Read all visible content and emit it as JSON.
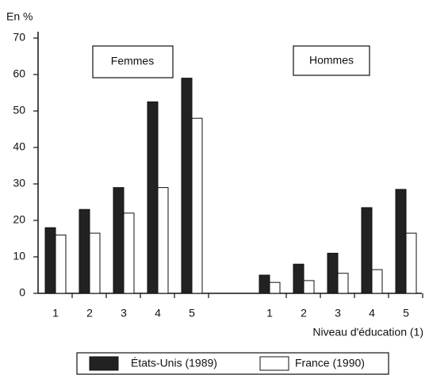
{
  "chart_data": {
    "type": "bar",
    "ylabel": "En %",
    "xlabel": "Niveau d'éducation (1)",
    "groups": [
      "Femmes",
      "Hommes"
    ],
    "categories": [
      "1",
      "2",
      "3",
      "4",
      "5",
      "1",
      "2",
      "3",
      "4",
      "5"
    ],
    "series": [
      {
        "name": "États-Unis (1989)",
        "color": "#222222",
        "values": [
          18,
          23,
          29,
          52.5,
          59,
          5,
          8,
          11,
          23.5,
          28.5
        ]
      },
      {
        "name": "France (1990)",
        "color": "#ffffff",
        "values": [
          16,
          16.5,
          22,
          29,
          48,
          3,
          3.5,
          5.5,
          6.5,
          16.5
        ]
      }
    ],
    "ylim": [
      0,
      70
    ],
    "yticks": [
      0,
      10,
      20,
      30,
      40,
      50,
      60,
      70
    ],
    "grid": false
  }
}
